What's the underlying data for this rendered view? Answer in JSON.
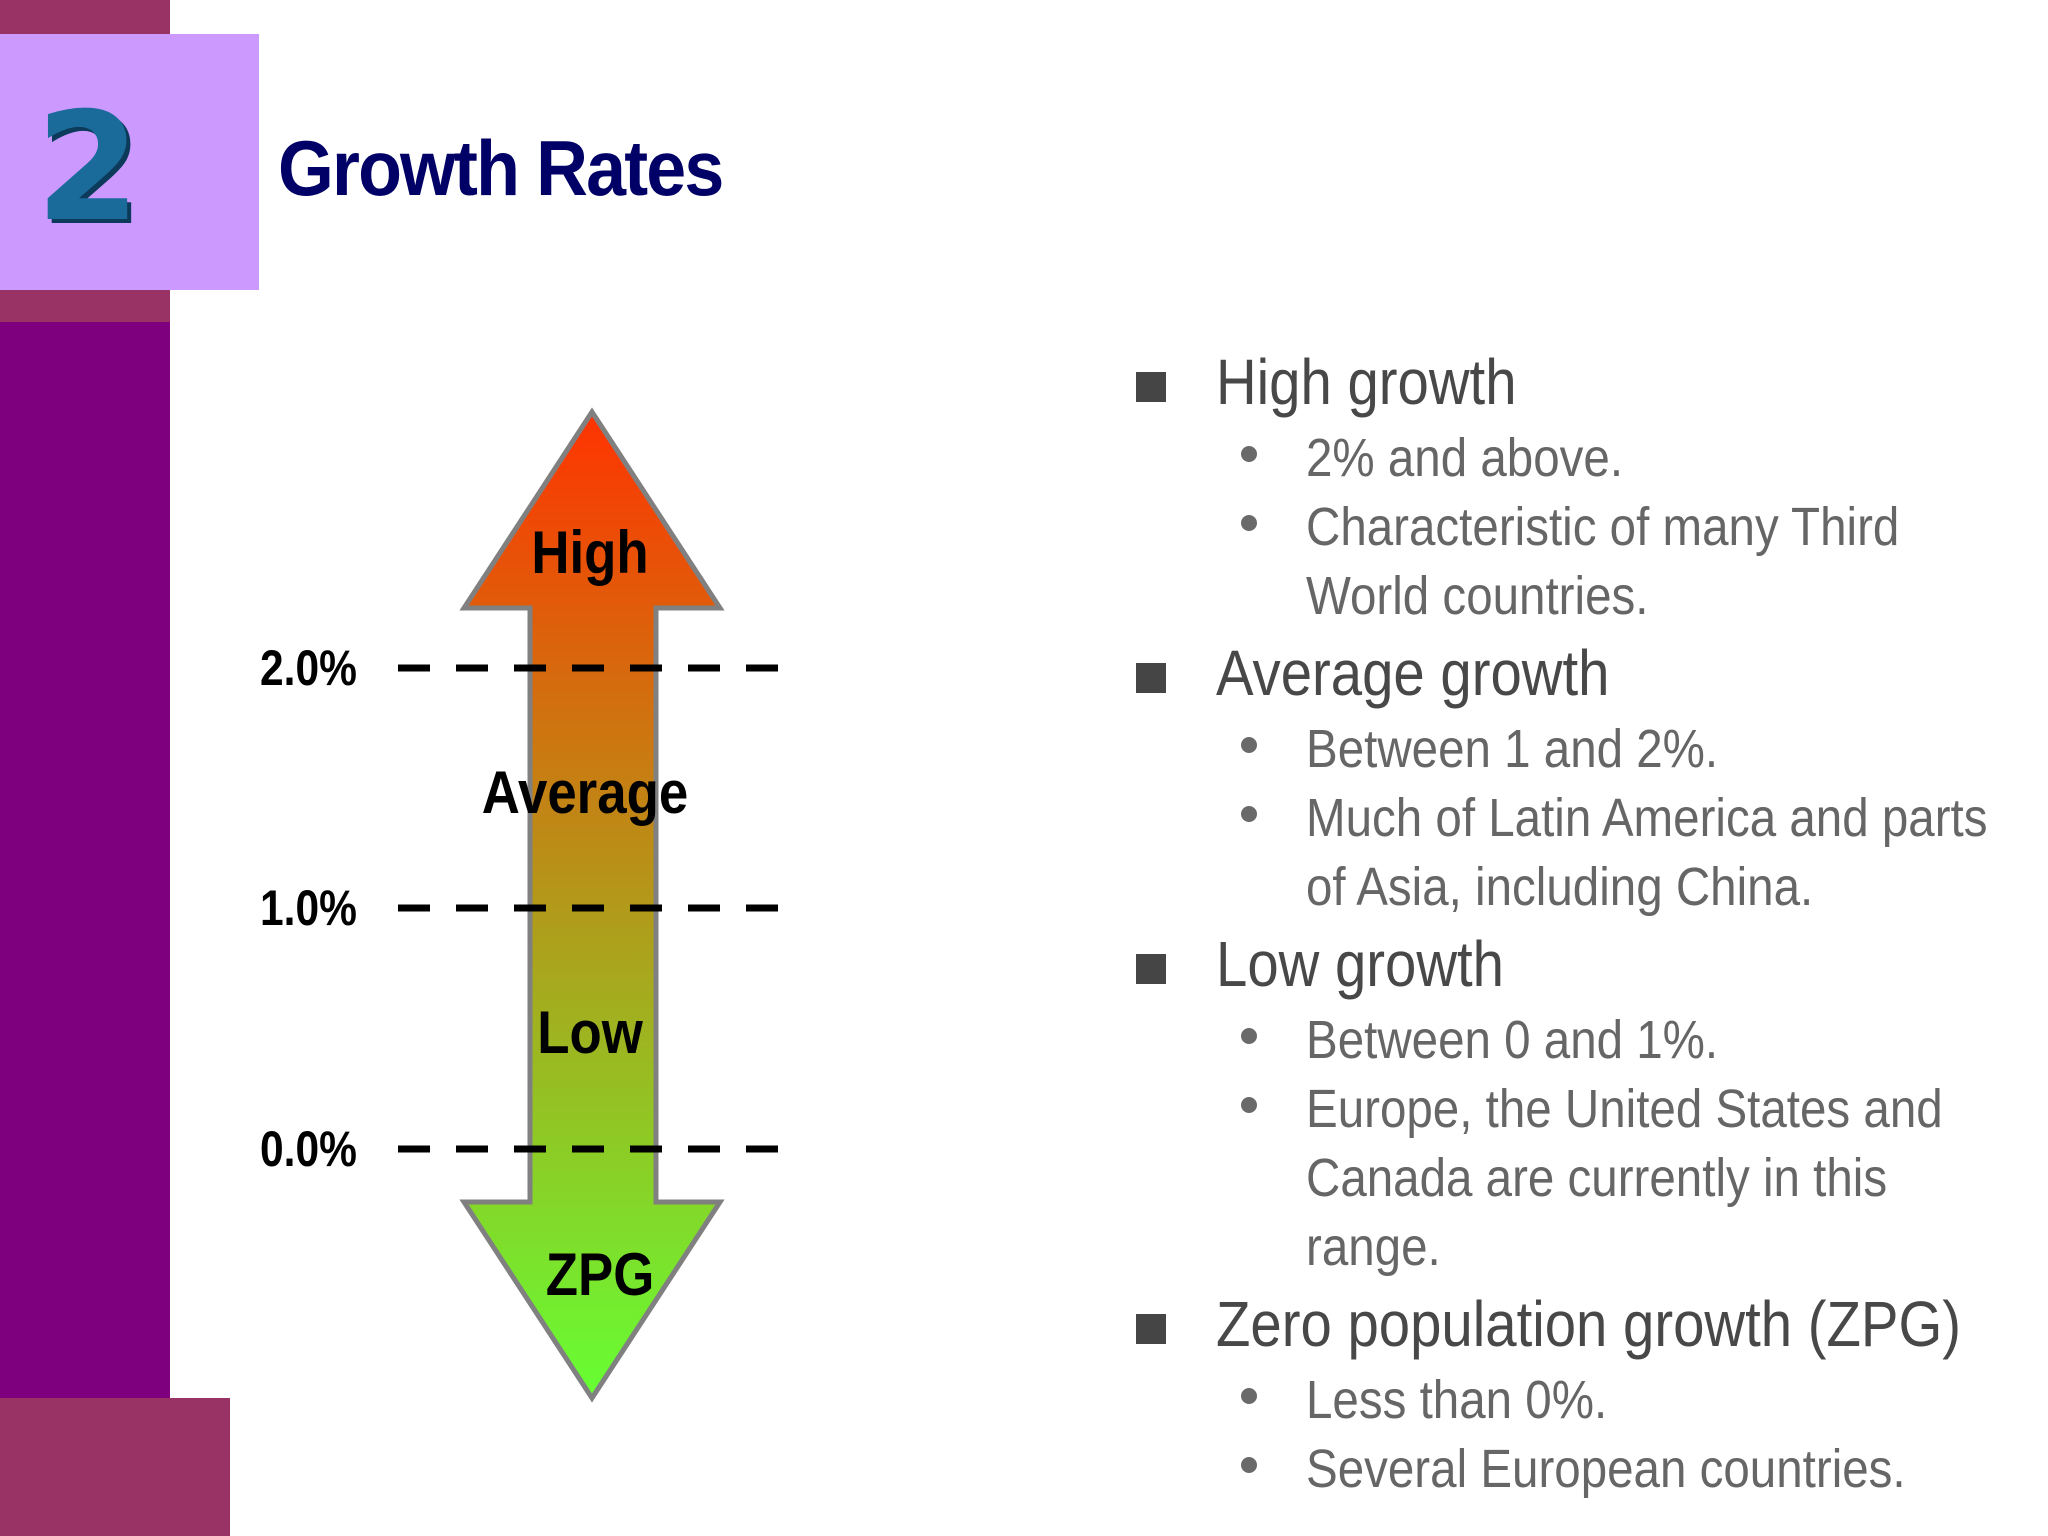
{
  "slide": {
    "number": "2",
    "title": "Growth Rates"
  },
  "diagram": {
    "ticks": [
      {
        "label": "2.0%",
        "value": 2.0
      },
      {
        "label": "1.0%",
        "value": 1.0
      },
      {
        "label": "0.0%",
        "value": 0.0
      }
    ],
    "zones": {
      "high": "High",
      "average": "Average",
      "low": "Low",
      "zpg": "ZPG"
    },
    "colors": {
      "top": "#ff3300",
      "bottom": "#66ff33",
      "outline": "#808080"
    }
  },
  "bullets": [
    {
      "heading": "High growth",
      "points": [
        "2% and above.",
        "Characteristic of many Third World countries."
      ]
    },
    {
      "heading": "Average growth",
      "points": [
        "Between 1 and 2%.",
        "Much of Latin America and parts of Asia, including China."
      ]
    },
    {
      "heading": "Low growth",
      "points": [
        "Between 0 and 1%.",
        "Europe, the United States and Canada are currently in this range."
      ]
    },
    {
      "heading": "Zero population growth (ZPG)",
      "points": [
        "Less than 0%.",
        "Several European countries."
      ]
    }
  ]
}
